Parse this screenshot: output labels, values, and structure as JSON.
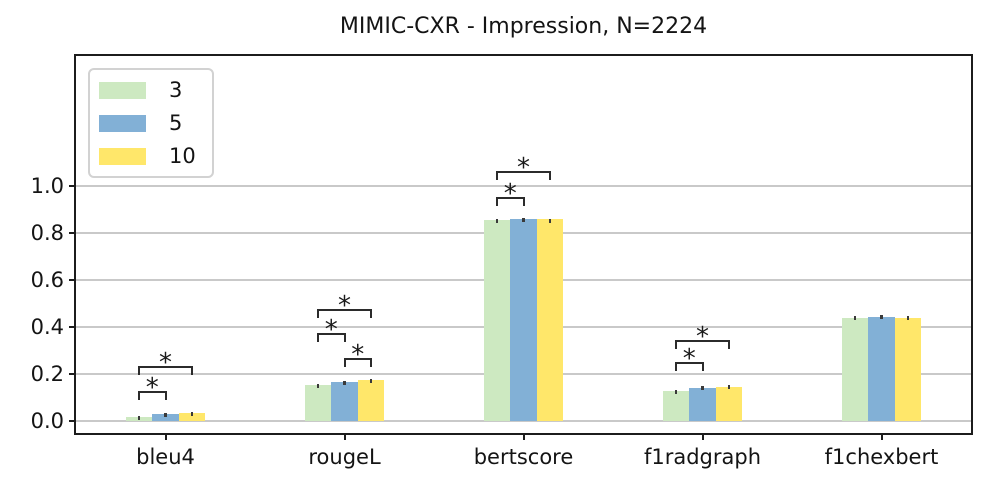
{
  "figure": {
    "title": "MIMIC-CXR - Impression, N=2224"
  },
  "chart_data": {
    "type": "bar",
    "title": "MIMIC-CXR - Impression, N=2224",
    "xlabel": "",
    "ylabel": "",
    "categories": [
      "bleu4",
      "rougeL",
      "bertscore",
      "f1radgraph",
      "f1chexbert"
    ],
    "series": [
      {
        "name": "3",
        "color": "#cde9c1",
        "values": [
          0.019,
          0.155,
          0.855,
          0.128,
          0.437
        ],
        "errors": [
          0.004,
          0.005,
          0.003,
          0.006,
          0.009
        ]
      },
      {
        "name": "5",
        "color": "#82b0d6",
        "values": [
          0.032,
          0.167,
          0.858,
          0.142,
          0.442
        ],
        "errors": [
          0.005,
          0.005,
          0.003,
          0.007,
          0.01
        ]
      },
      {
        "name": "10",
        "color": "#ffe76a",
        "values": [
          0.035,
          0.175,
          0.857,
          0.145,
          0.438
        ],
        "errors": [
          0.005,
          0.006,
          0.003,
          0.007,
          0.009
        ]
      }
    ],
    "yticks": [
      0.0,
      0.2,
      0.4,
      0.6,
      0.8,
      1.0
    ],
    "ytick_labels": [
      "0.0",
      "0.2",
      "0.4",
      "0.6",
      "0.8",
      "1.0"
    ],
    "ylim": [
      -0.05,
      1.55
    ],
    "grid": true,
    "legend": {
      "position": "upper-left",
      "entries": [
        "3",
        "5",
        "10"
      ]
    },
    "significance_brackets": [
      {
        "category": "bleu4",
        "between": [
          "3",
          "5"
        ],
        "y": 0.122,
        "label": "*"
      },
      {
        "category": "bleu4",
        "between": [
          "3",
          "10"
        ],
        "y": 0.228,
        "label": "*"
      },
      {
        "category": "rougeL",
        "between": [
          "5",
          "10"
        ],
        "y": 0.266,
        "label": "*"
      },
      {
        "category": "rougeL",
        "between": [
          "3",
          "5"
        ],
        "y": 0.37,
        "label": "*"
      },
      {
        "category": "rougeL",
        "between": [
          "3",
          "10"
        ],
        "y": 0.474,
        "label": "*"
      },
      {
        "category": "bertscore",
        "between": [
          "3",
          "5"
        ],
        "y": 0.948,
        "label": "*"
      },
      {
        "category": "bertscore",
        "between": [
          "3",
          "10"
        ],
        "y": 1.056,
        "label": "*"
      },
      {
        "category": "f1radgraph",
        "between": [
          "3",
          "5"
        ],
        "y": 0.247,
        "label": "*"
      },
      {
        "category": "f1radgraph",
        "between": [
          "3",
          "10"
        ],
        "y": 0.342,
        "label": "*"
      }
    ],
    "colors": {
      "grid": "#c9c9c9",
      "axis": "#1c1c1c",
      "error_bar": "#3a3a3a",
      "bracket": "#2b2b2b",
      "background": "#ffffff"
    }
  }
}
